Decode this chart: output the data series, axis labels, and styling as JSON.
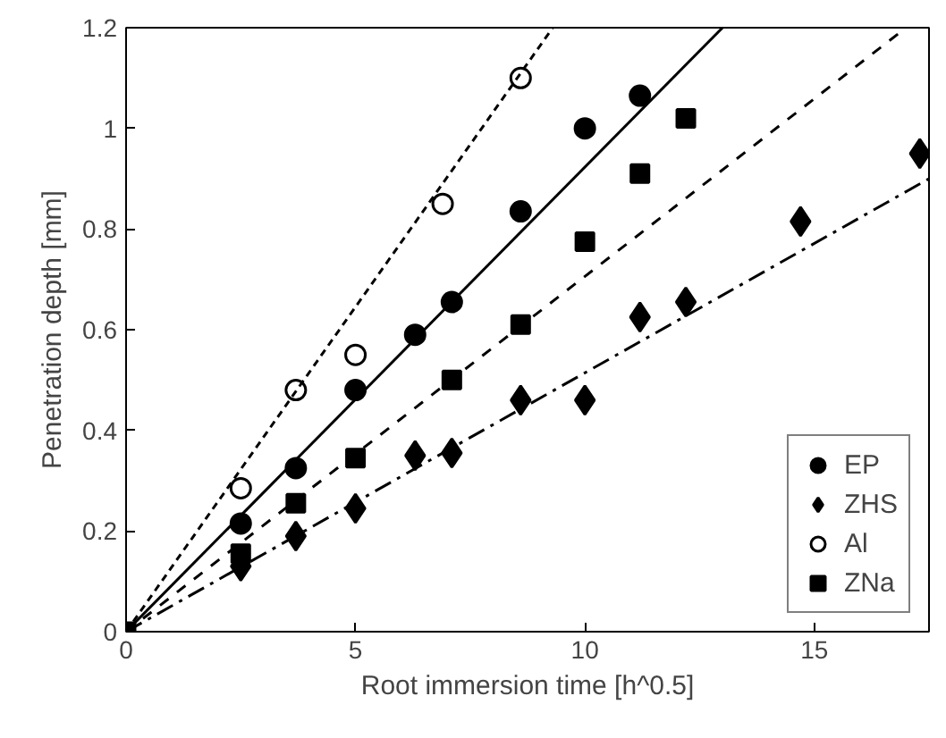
{
  "chart_data": {
    "type": "scatter",
    "xlabel": "Root immersion time [h^0.5]",
    "ylabel": "Penetration depth [mm]",
    "xlim": [
      0,
      17.5
    ],
    "ylim": [
      0,
      1.2
    ],
    "xticks": [
      0,
      5,
      10,
      15
    ],
    "yticks": [
      0,
      {
        "value": 0.2,
        "label": "0.2"
      },
      {
        "value": 0.4,
        "label": "0.4"
      },
      {
        "value": 0.6,
        "label": "0.6"
      },
      {
        "value": 0.8,
        "label": "0.8"
      },
      1,
      {
        "value": 1.2,
        "label": "1.2"
      }
    ],
    "grid": false,
    "legend": "bottom right",
    "series": [
      {
        "name": "EP",
        "color": "#000000",
        "marker": "circle",
        "x": [
          2.5,
          3.7,
          5,
          6.3,
          7.1,
          8.6,
          10,
          11.2
        ],
        "values": [
          0.215,
          0.325,
          0.48,
          0.59,
          0.655,
          0.835,
          1.0,
          1.065
        ]
      },
      {
        "name": "ZHS",
        "color": "#000000",
        "marker": "diamond",
        "x": [
          2.5,
          3.7,
          5,
          6.3,
          7.1,
          8.6,
          10,
          11.2,
          12.2,
          14.7,
          17.3
        ],
        "values": [
          0.13,
          0.19,
          0.245,
          0.35,
          0.355,
          0.46,
          0.46,
          0.625,
          0.655,
          0.815,
          0.95
        ]
      },
      {
        "name": "Al",
        "color": "#ffffff",
        "marker": "circle",
        "x": [
          2.5,
          3.7,
          5,
          6.9,
          8.6
        ],
        "values": [
          0.285,
          0.48,
          0.55,
          0.85,
          1.1
        ]
      },
      {
        "name": "ZNa",
        "color": "#000000",
        "marker": "square",
        "x": [
          0,
          2.5,
          3.7,
          5,
          7.1,
          8.6,
          10,
          11.2,
          12.2
        ],
        "values": [
          0,
          0.155,
          0.255,
          0.345,
          0.5,
          0.61,
          0.775,
          0.91,
          1.02
        ]
      },
      {
        "type": "line",
        "color": "#000000",
        "line_style": "solid",
        "x": [
          0,
          13.0
        ],
        "values": [
          0,
          1.2
        ]
      },
      {
        "type": "line",
        "color": "#000000",
        "line_style": "dashdot",
        "x": [
          0,
          17.5
        ],
        "values": [
          0,
          0.9
        ]
      },
      {
        "type": "line",
        "color": "#000000",
        "line_style": "dotted",
        "x": [
          0,
          9.3
        ],
        "values": [
          0,
          1.2
        ]
      },
      {
        "type": "line",
        "color": "#000000",
        "line_style": "dashed",
        "x": [
          0,
          17.0
        ],
        "values": [
          0,
          1.2
        ]
      }
    ]
  }
}
